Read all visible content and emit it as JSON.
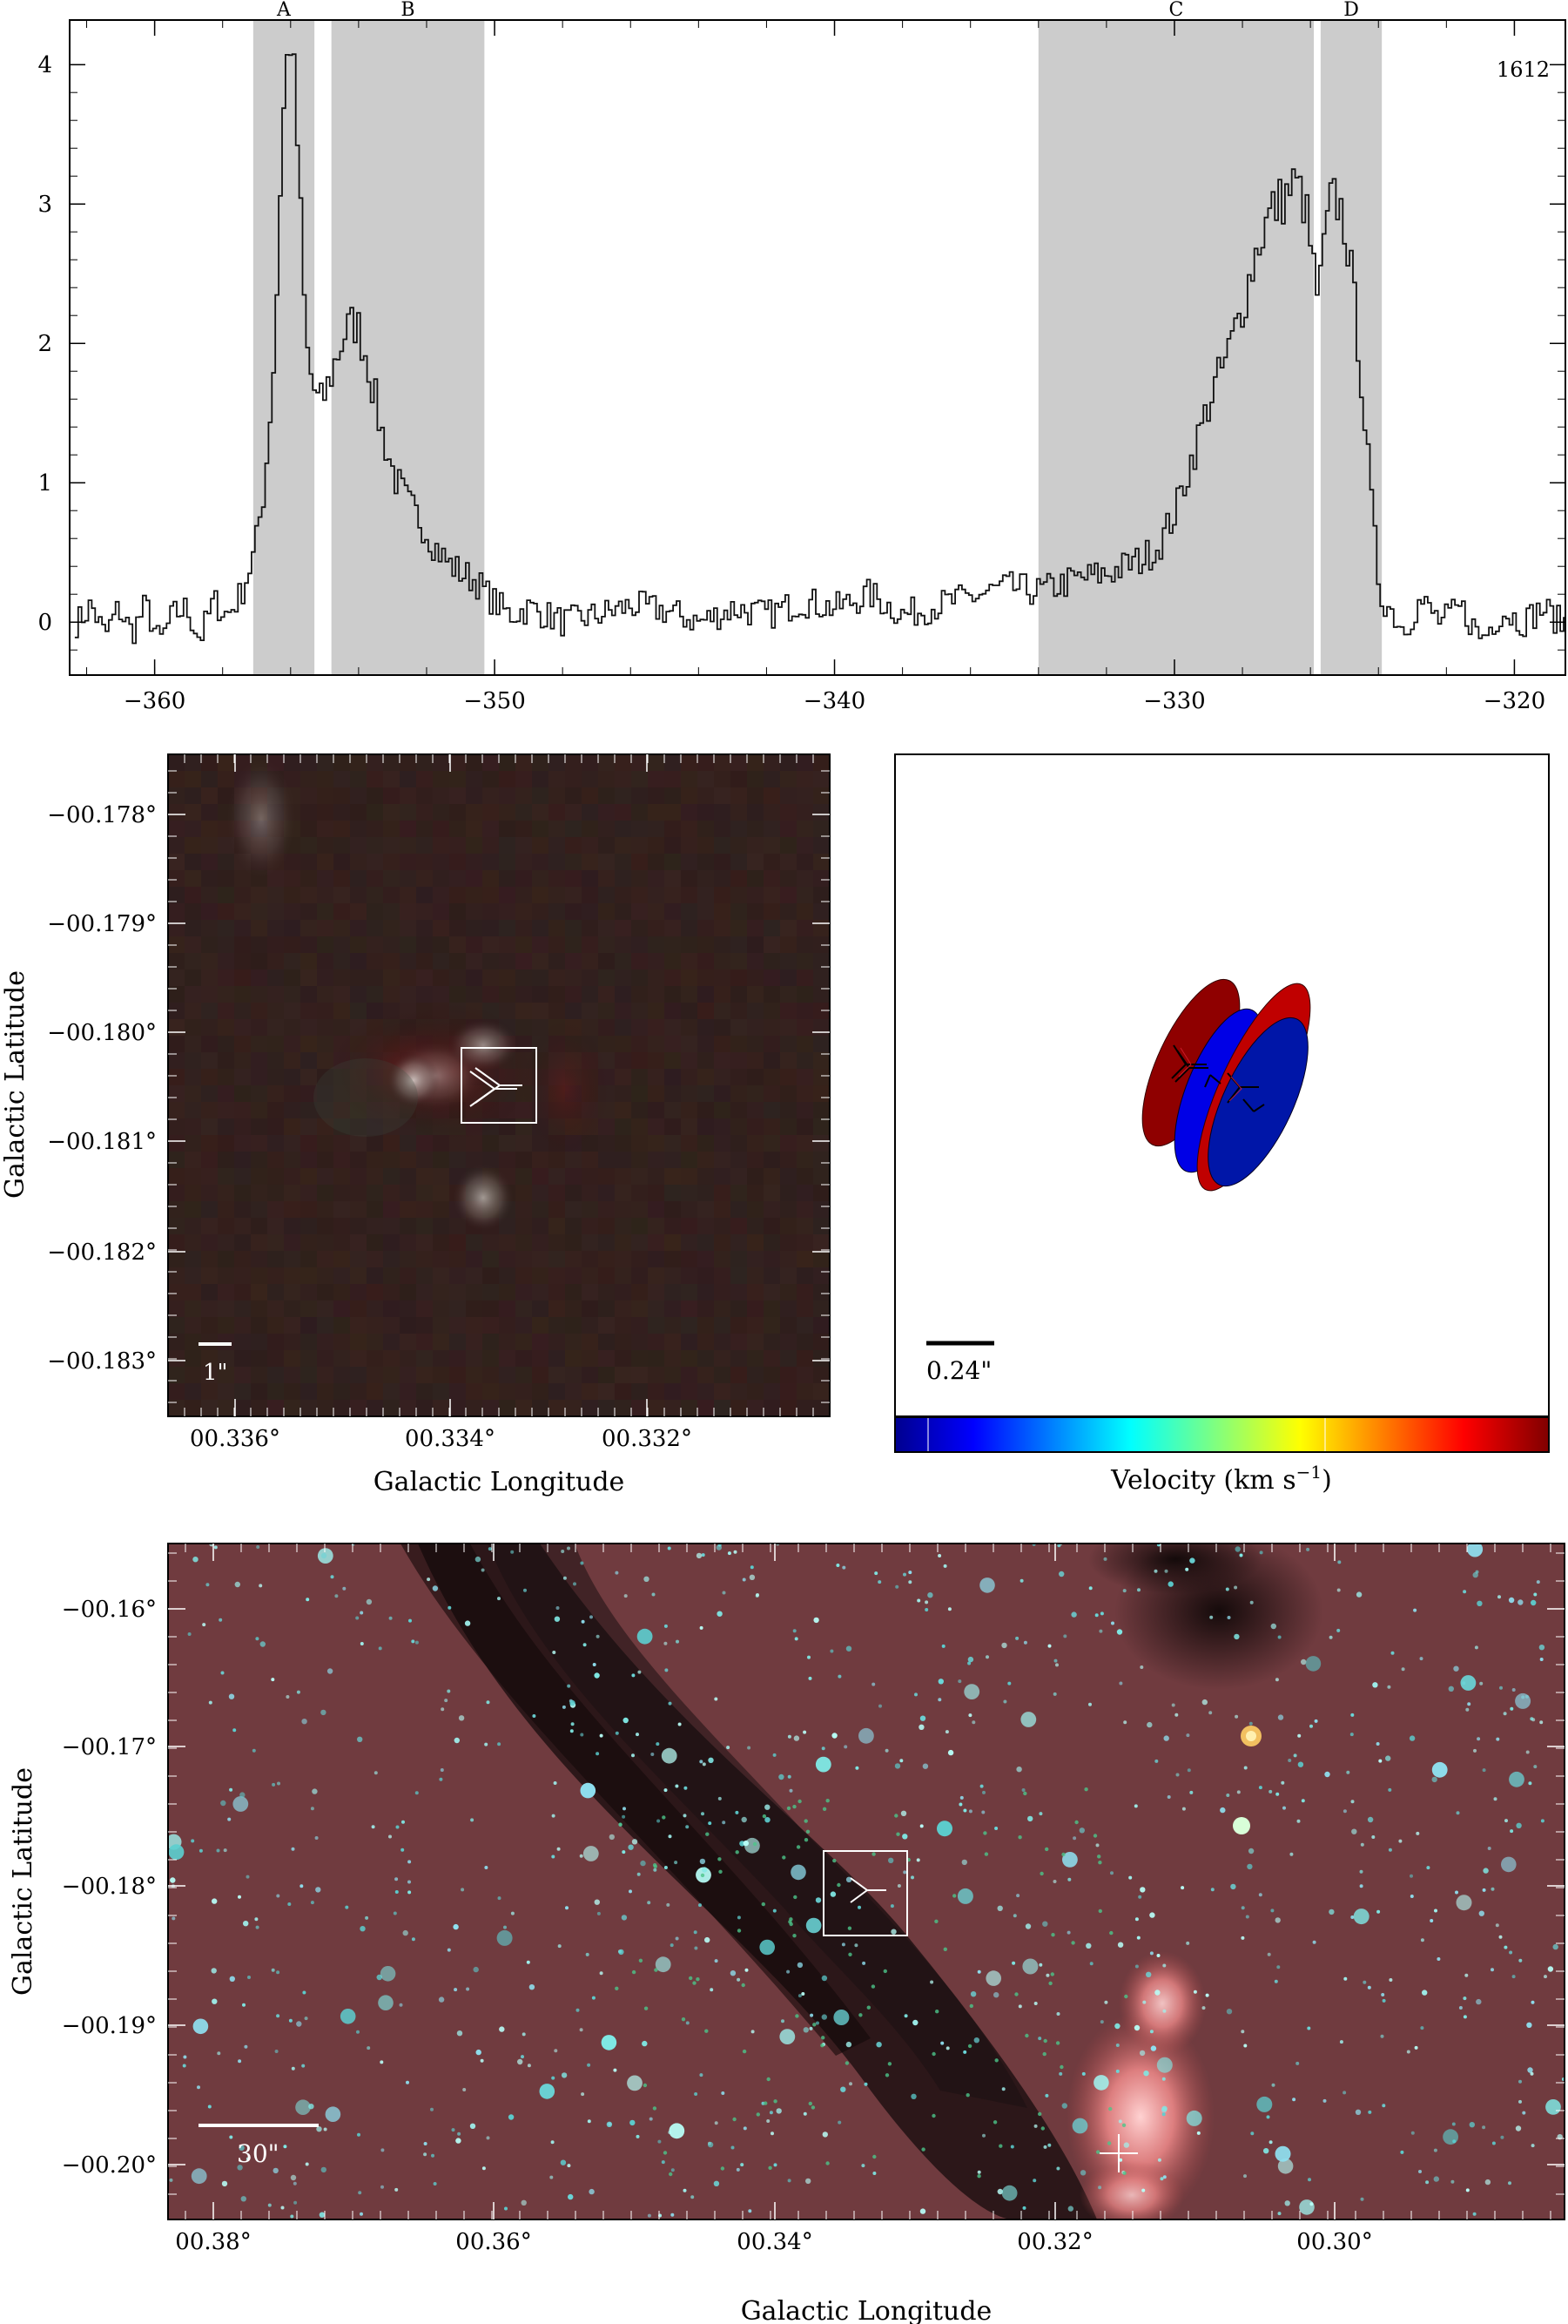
{
  "chart_data": [
    {
      "type": "line",
      "panel": "spectrum",
      "annotation": "1612",
      "xlim": [
        -362.5,
        -318.5
      ],
      "ylim": [
        -0.38,
        4.32
      ],
      "x_ticks": [
        -360,
        -350,
        -340,
        -330,
        -320
      ],
      "x_tick_labels": [
        "−360",
        "−350",
        "−340",
        "−330",
        "−320"
      ],
      "y_ticks": [
        0,
        1,
        2,
        3,
        4
      ],
      "y_tick_labels": [
        "0",
        "1",
        "2",
        "3",
        "4"
      ],
      "shaded_regions": [
        {
          "label": "A",
          "x0": -357.1,
          "x1": -355.3
        },
        {
          "label": "B",
          "x0": -354.8,
          "x1": -350.3
        },
        {
          "label": "C",
          "x0": -334.0,
          "x1": -325.9
        },
        {
          "label": "D",
          "x0": -325.7,
          "x1": -323.9
        }
      ],
      "series": [
        {
          "x": [
            -362.3,
            -361.9,
            -361.5,
            -361.1,
            -360.7,
            -360.3,
            -359.9,
            -359.5,
            -359.1,
            -358.7,
            -358.3,
            -357.9,
            -357.5,
            -357.1,
            -356.8,
            -356.5,
            -356.3,
            -356.1,
            -356.0,
            -355.8,
            -355.6,
            -355.4,
            -355.2,
            -355.0,
            -354.7,
            -354.4,
            -354.1,
            -353.8,
            -353.4,
            -353.0,
            -352.6,
            -352.2,
            -351.8,
            -351.4,
            -351.0,
            -350.6,
            -350.2,
            -349.6,
            -349.0,
            -348.0,
            -347.0,
            -346.0,
            -345.0,
            -344.0,
            -343.0,
            -342.0,
            -341.0,
            -340.0,
            -339.0,
            -338.0,
            -337.0,
            -336.0,
            -335.0,
            -334.0,
            -333.0,
            -332.0,
            -331.0,
            -330.5,
            -330.0,
            -329.5,
            -329.0,
            -328.5,
            -328.0,
            -327.6,
            -327.2,
            -326.8,
            -326.5,
            -326.2,
            -326.0,
            -325.8,
            -325.6,
            -325.4,
            -325.2,
            -325.0,
            -324.8,
            -324.6,
            -324.4,
            -324.2,
            -324.0,
            -323.7,
            -323.3,
            -322.8,
            -322.2,
            -321.6,
            -321.0,
            -320.4,
            -319.8,
            -319.2,
            -318.7
          ],
          "y": [
            0.0,
            0.12,
            -0.1,
            0.1,
            -0.08,
            0.12,
            -0.15,
            0.05,
            0.1,
            -0.12,
            0.15,
            0.05,
            0.2,
            0.5,
            1.0,
            2.0,
            3.5,
            4.2,
            4.15,
            3.2,
            2.0,
            1.7,
            1.55,
            1.65,
            1.9,
            2.1,
            2.15,
            1.9,
            1.4,
            1.05,
            0.85,
            0.72,
            0.55,
            0.42,
            0.35,
            0.3,
            0.18,
            0.05,
            0.1,
            0.0,
            0.05,
            0.12,
            0.08,
            0.0,
            0.1,
            0.05,
            0.15,
            0.1,
            0.2,
            0.05,
            0.12,
            0.18,
            0.25,
            0.22,
            0.3,
            0.35,
            0.45,
            0.55,
            0.8,
            1.2,
            1.6,
            1.9,
            2.3,
            2.7,
            2.95,
            3.05,
            3.15,
            3.0,
            2.6,
            2.3,
            2.8,
            3.05,
            3.0,
            2.8,
            2.4,
            1.9,
            1.3,
            0.7,
            0.2,
            0.1,
            -0.05,
            0.15,
            0.0,
            0.1,
            -0.12,
            0.08,
            0.0,
            0.1,
            0.0
          ]
        }
      ]
    },
    {
      "type": "heatmap",
      "panel": "zoom-image",
      "xlabel": "Galactic Longitude",
      "ylabel": "Galactic Latitude",
      "x_tick_labels": [
        "00.336°",
        "00.334°",
        "00.332°"
      ],
      "y_tick_labels": [
        "−00.178°",
        "−00.179°",
        "−00.180°",
        "−00.181°",
        "−00.182°",
        "−00.183°"
      ],
      "scale_bar_label": "1\""
    },
    {
      "type": "scatter",
      "panel": "maser-spots",
      "scale_bar_label": "0.24\"",
      "colorbar_label": "Velocity (km s",
      "colorbar_label_exponent": "−1",
      "colorbar_label_close": ")"
    },
    {
      "type": "heatmap",
      "panel": "wide-image",
      "xlabel": "Galactic Longitude",
      "ylabel": "Galactic Latitude",
      "x_tick_labels": [
        "00.38°",
        "00.36°",
        "00.34°",
        "00.32°",
        "00.30°"
      ],
      "y_tick_labels": [
        "−00.16°",
        "−00.17°",
        "−00.18°",
        "−00.19°",
        "−00.20°"
      ],
      "scale_bar_label": "30\""
    }
  ]
}
